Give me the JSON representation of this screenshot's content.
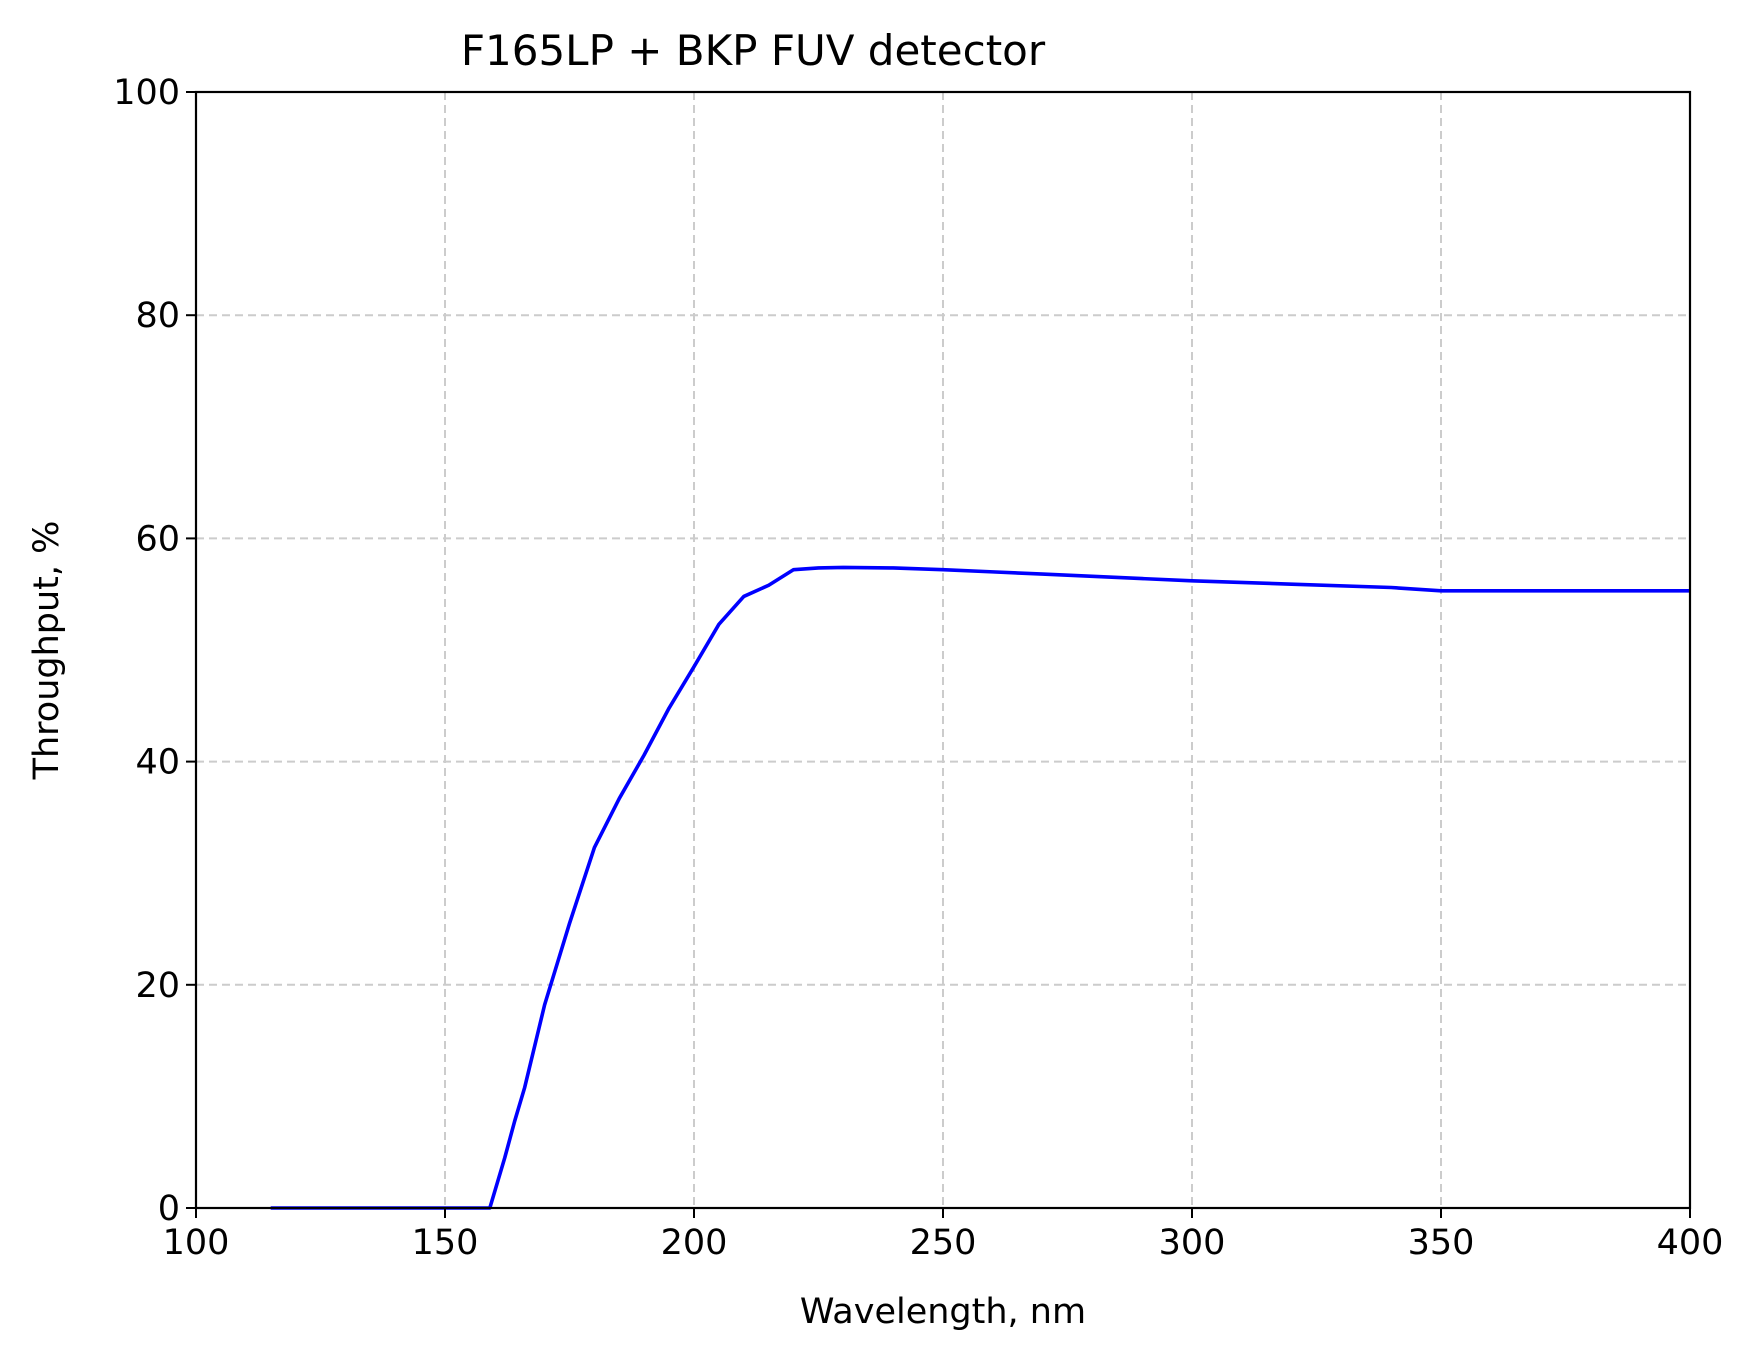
{
  "chart_data": {
    "type": "line",
    "title": "F165LP + BKP FUV detector",
    "xlabel": "Wavelength, nm",
    "ylabel": "Throughput, %",
    "xlim": [
      100,
      400
    ],
    "ylim": [
      0,
      100
    ],
    "xticks": [
      100,
      150,
      200,
      250,
      300,
      350,
      400
    ],
    "yticks": [
      0,
      20,
      40,
      60,
      80,
      100
    ],
    "grid": true,
    "grid_style": "dashed",
    "legend": "none",
    "series": [
      {
        "color": "#0000ff",
        "x": [
          115,
          120,
          130,
          140,
          150,
          155,
          159,
          160,
          162,
          164,
          166,
          168,
          170,
          175,
          180,
          185,
          190,
          195,
          200,
          205,
          210,
          215,
          220,
          225,
          230,
          240,
          250,
          260,
          270,
          280,
          290,
          300,
          320,
          340,
          350,
          360,
          380,
          400
        ],
        "y": [
          0,
          0,
          0,
          0,
          0,
          0,
          0,
          1.5,
          4.5,
          7.8,
          10.8,
          14.5,
          18.2,
          25.5,
          32.3,
          36.7,
          40.6,
          44.8,
          48.5,
          52.3,
          54.8,
          55.8,
          57.2,
          57.35,
          57.4,
          57.35,
          57.2,
          57.0,
          56.8,
          56.6,
          56.4,
          56.2,
          55.9,
          55.6,
          55.3,
          55.3,
          55.3,
          55.3
        ]
      }
    ]
  }
}
